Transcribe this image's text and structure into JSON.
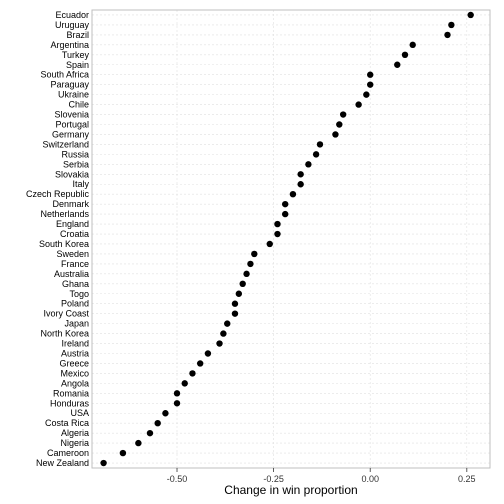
{
  "chart_data": {
    "type": "scatter",
    "title": "",
    "xlabel": "Change in win proportion",
    "ylabel": "",
    "xlim": [
      -0.72,
      0.31
    ],
    "xticks": [
      -0.5,
      -0.25,
      0.0,
      0.25
    ],
    "xtick_labels": [
      "-0.50",
      "-0.25",
      "0.00",
      "0.25"
    ],
    "grid": true,
    "legend": "none",
    "colors": {
      "point": "#000000",
      "grid": "#e0e0e0",
      "panel_border": "#bfbfbf",
      "background": "#ffffff"
    },
    "categories": [
      "Ecuador",
      "Uruguay",
      "Brazil",
      "Argentina",
      "Turkey",
      "Spain",
      "South Africa",
      "Paraguay",
      "Ukraine",
      "Chile",
      "Slovenia",
      "Portugal",
      "Germany",
      "Switzerland",
      "Russia",
      "Serbia",
      "Slovakia",
      "Italy",
      "Czech Republic",
      "Denmark",
      "Netherlands",
      "England",
      "Croatia",
      "South Korea",
      "Sweden",
      "France",
      "Australia",
      "Ghana",
      "Togo",
      "Poland",
      "Ivory Coast",
      "Japan",
      "North Korea",
      "Ireland",
      "Austria",
      "Greece",
      "Mexico",
      "Angola",
      "Romania",
      "Honduras",
      "USA",
      "Costa Rica",
      "Algeria",
      "Nigeria",
      "Cameroon",
      "New Zealand"
    ],
    "values": [
      0.26,
      0.21,
      0.2,
      0.11,
      0.09,
      0.07,
      0.0,
      0.0,
      -0.01,
      -0.03,
      -0.07,
      -0.08,
      -0.09,
      -0.13,
      -0.14,
      -0.16,
      -0.18,
      -0.18,
      -0.2,
      -0.22,
      -0.22,
      -0.24,
      -0.24,
      -0.26,
      -0.3,
      -0.31,
      -0.32,
      -0.33,
      -0.34,
      -0.35,
      -0.35,
      -0.37,
      -0.38,
      -0.39,
      -0.42,
      -0.44,
      -0.46,
      -0.48,
      -0.5,
      -0.5,
      -0.53,
      -0.55,
      -0.57,
      -0.6,
      -0.64,
      -0.69
    ]
  }
}
